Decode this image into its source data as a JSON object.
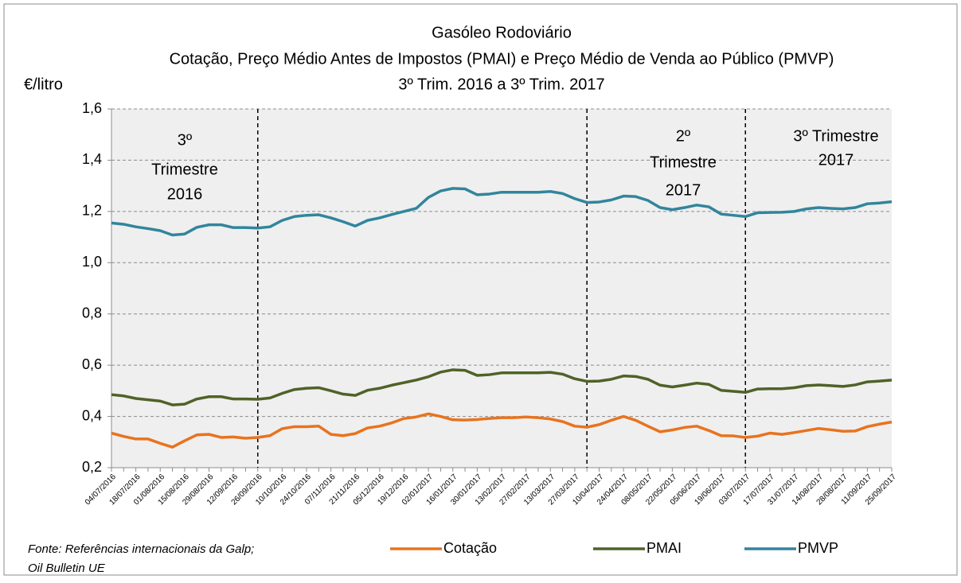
{
  "chart_data": {
    "type": "line",
    "title": "Gasóleo Rodoviário",
    "subtitle": [
      "Cotação, Preço  Médio Antes de Impostos  (PMAI) e Preço  Médio de Venda ao Público (PMVP)",
      "3º Trim. 2016 a 3º Trim. 2017"
    ],
    "y_label": "€/litro",
    "categories": [
      "04/07/2016",
      null,
      "18/07/2016",
      null,
      "01/08/2016",
      null,
      "15/08/2016",
      null,
      "29/08/2016",
      null,
      "12/09/2016",
      null,
      "26/09/2016",
      null,
      "10/10/2016",
      null,
      "24/10/2016",
      null,
      "07/11/2016",
      null,
      "21/11/2016",
      null,
      "05/12/2016",
      null,
      "19/12/2016",
      null,
      "02/01/2017",
      null,
      "16/01/2017",
      null,
      "30/01/2017",
      null,
      "13/02/2017",
      null,
      "27/02/2017",
      null,
      "13/03/2017",
      null,
      "27/03/2017",
      null,
      "10/04/2017",
      null,
      "24/04/2017",
      null,
      "08/05/2017",
      null,
      "22/05/2017",
      null,
      "05/06/2017",
      null,
      "19/06/2017",
      null,
      "03/07/2017",
      null,
      "17/07/2017",
      null,
      "31/07/2017",
      null,
      "14/08/2017",
      null,
      "28/08/2017",
      null,
      "11/09/2017",
      null,
      "25/09/2017"
    ],
    "series": [
      {
        "name": "Cotação",
        "color": "#e8731e",
        "values": [
          0.335,
          0.322,
          0.312,
          0.312,
          0.295,
          0.28,
          0.305,
          0.328,
          0.33,
          0.318,
          0.32,
          0.315,
          0.318,
          0.325,
          0.352,
          0.36,
          0.36,
          0.362,
          0.33,
          0.325,
          0.333,
          0.355,
          0.362,
          0.375,
          0.392,
          0.398,
          0.41,
          0.4,
          0.387,
          0.386,
          0.388,
          0.392,
          0.395,
          0.395,
          0.398,
          0.395,
          0.39,
          0.38,
          0.362,
          0.358,
          0.368,
          0.385,
          0.4,
          0.385,
          0.362,
          0.34,
          0.347,
          0.357,
          0.362,
          0.345,
          0.325,
          0.324,
          0.318,
          0.323,
          0.335,
          0.33,
          0.337,
          0.345,
          0.353,
          0.348,
          0.342,
          0.343,
          0.36,
          0.37,
          0.378
        ]
      },
      {
        "name": "PMAI",
        "color": "#4f6228",
        "values": [
          0.485,
          0.48,
          0.47,
          0.465,
          0.46,
          0.445,
          0.448,
          0.468,
          0.477,
          0.477,
          0.468,
          0.468,
          0.467,
          0.472,
          0.49,
          0.505,
          0.51,
          0.512,
          0.5,
          0.487,
          0.482,
          0.502,
          0.51,
          0.522,
          0.532,
          0.542,
          0.555,
          0.573,
          0.582,
          0.58,
          0.56,
          0.563,
          0.57,
          0.57,
          0.57,
          0.57,
          0.572,
          0.565,
          0.547,
          0.537,
          0.538,
          0.545,
          0.558,
          0.556,
          0.545,
          0.522,
          0.515,
          0.522,
          0.53,
          0.525,
          0.502,
          0.498,
          0.494,
          0.507,
          0.508,
          0.508,
          0.512,
          0.52,
          0.523,
          0.52,
          0.517,
          0.523,
          0.535,
          0.538,
          0.542
        ]
      },
      {
        "name": "PMVP",
        "color": "#31859c",
        "values": [
          1.155,
          1.15,
          1.14,
          1.133,
          1.125,
          1.108,
          1.112,
          1.138,
          1.148,
          1.148,
          1.137,
          1.137,
          1.135,
          1.14,
          1.165,
          1.18,
          1.185,
          1.187,
          1.175,
          1.16,
          1.143,
          1.165,
          1.175,
          1.188,
          1.2,
          1.212,
          1.255,
          1.28,
          1.29,
          1.288,
          1.265,
          1.268,
          1.275,
          1.275,
          1.275,
          1.275,
          1.278,
          1.27,
          1.25,
          1.235,
          1.237,
          1.245,
          1.26,
          1.258,
          1.243,
          1.215,
          1.207,
          1.215,
          1.225,
          1.218,
          1.19,
          1.185,
          1.18,
          1.195,
          1.196,
          1.197,
          1.2,
          1.21,
          1.215,
          1.212,
          1.21,
          1.215,
          1.23,
          1.233,
          1.238
        ]
      }
    ],
    "ylim": [
      0.2,
      1.6
    ],
    "yticks": [
      {
        "value": 0.2,
        "label": "0,2"
      },
      {
        "value": 0.4,
        "label": "0,4"
      },
      {
        "value": 0.6,
        "label": "0,6"
      },
      {
        "value": 0.8,
        "label": "0,8"
      },
      {
        "value": 1.0,
        "label": "1,0"
      },
      {
        "value": 1.2,
        "label": "1,2"
      },
      {
        "value": 1.4,
        "label": "1,4"
      },
      {
        "value": 1.6,
        "label": "1,6"
      }
    ],
    "grid": true,
    "legend": "bottom",
    "annotations": [
      {
        "lines": [
          "3º",
          "Trimestre",
          "2016"
        ]
      },
      {
        "lines": [
          "2º",
          "Trimestre",
          "2017"
        ]
      },
      {
        "lines": [
          "3º Trimestre",
          "2017"
        ]
      }
    ],
    "source": [
      "Fonte: Referências internacionais da Galp;",
      "Oil Bulletin UE"
    ]
  }
}
